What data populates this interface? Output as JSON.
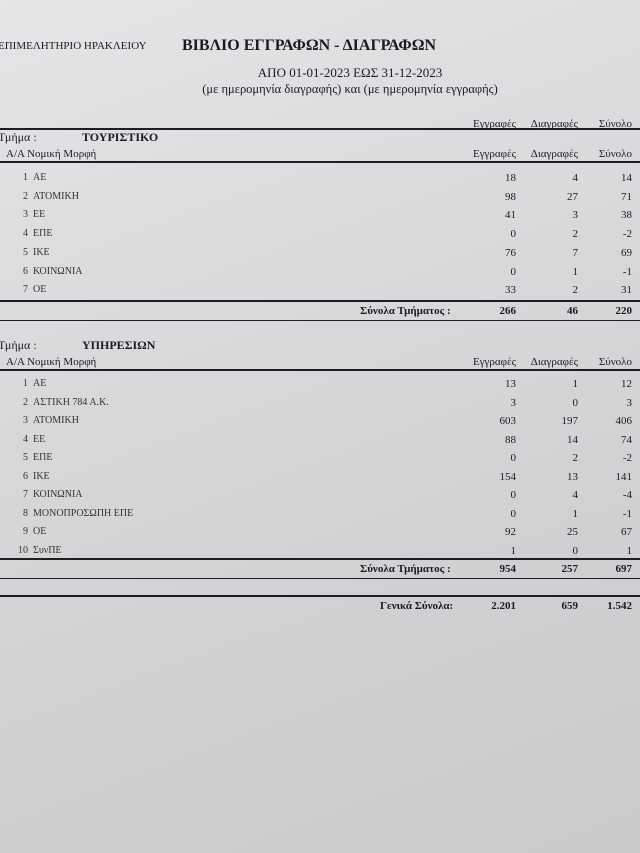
{
  "header": {
    "organization": "ΕΠΙΜΕΛΗΤΗΡΙΟ ΗΡΑΚΛΕΙΟΥ",
    "title": "ΒΙΒΛΙΟ ΕΓΓΡΑΦΩΝ - ΔΙΑΓΡΑΦΩΝ",
    "period": "ΑΠΟ 01-01-2023 ΕΩΣ 31-12-2023",
    "subtitle": "(με ημερομηνία διαγραφής) και (με ημερομηνία εγγραφής)"
  },
  "columns": {
    "registrations": "Εγγραφές",
    "deletions": "Διαγραφές",
    "total": "Σύνολο",
    "form": "Α/Α Νομική Μορφή"
  },
  "section_label": "Τμήμα :",
  "sections": [
    {
      "name": "ΤΟΥΡΙΣΤΙΚΟ",
      "rows": [
        {
          "no": "1",
          "form": "ΑΕ",
          "reg": "18",
          "del": "4",
          "total": "14"
        },
        {
          "no": "2",
          "form": "ΑΤΟΜΙΚΗ",
          "reg": "98",
          "del": "27",
          "total": "71"
        },
        {
          "no": "3",
          "form": "ΕΕ",
          "reg": "41",
          "del": "3",
          "total": "38"
        },
        {
          "no": "4",
          "form": "ΕΠΕ",
          "reg": "0",
          "del": "2",
          "total": "-2"
        },
        {
          "no": "5",
          "form": "ΙΚΕ",
          "reg": "76",
          "del": "7",
          "total": "69"
        },
        {
          "no": "6",
          "form": "ΚΟΙΝΩΝΙΑ",
          "reg": "0",
          "del": "1",
          "total": "-1"
        },
        {
          "no": "7",
          "form": "ΟΕ",
          "reg": "33",
          "del": "2",
          "total": "31"
        }
      ],
      "totals_label": "Σύνολα Τμήματος :",
      "totals": {
        "reg": "266",
        "del": "46",
        "total": "220"
      }
    },
    {
      "name": "ΥΠΗΡΕΣΙΩΝ",
      "rows": [
        {
          "no": "1",
          "form": "ΑΕ",
          "reg": "13",
          "del": "1",
          "total": "12"
        },
        {
          "no": "2",
          "form": "ΑΣΤΙΚΗ 784 Α.Κ.",
          "reg": "3",
          "del": "0",
          "total": "3"
        },
        {
          "no": "3",
          "form": "ΑΤΟΜΙΚΗ",
          "reg": "603",
          "del": "197",
          "total": "406"
        },
        {
          "no": "4",
          "form": "ΕΕ",
          "reg": "88",
          "del": "14",
          "total": "74"
        },
        {
          "no": "5",
          "form": "ΕΠΕ",
          "reg": "0",
          "del": "2",
          "total": "-2"
        },
        {
          "no": "6",
          "form": "ΙΚΕ",
          "reg": "154",
          "del": "13",
          "total": "141"
        },
        {
          "no": "7",
          "form": "ΚΟΙΝΩΝΙΑ",
          "reg": "0",
          "del": "4",
          "total": "-4"
        },
        {
          "no": "8",
          "form": "ΜΟΝΟΠΡΟΣΩΠΗ ΕΠΕ",
          "reg": "0",
          "del": "1",
          "total": "-1"
        },
        {
          "no": "9",
          "form": "ΟΕ",
          "reg": "92",
          "del": "25",
          "total": "67"
        },
        {
          "no": "10",
          "form": "ΣυνΠΕ",
          "reg": "1",
          "del": "0",
          "total": "1"
        }
      ],
      "totals_label": "Σύνολα Τμήματος :",
      "totals": {
        "reg": "954",
        "del": "257",
        "total": "697"
      }
    }
  ],
  "grand_totals": {
    "label": "Γενικά Σύνολα:",
    "reg": "2.201",
    "del": "659",
    "total": "1.542"
  }
}
